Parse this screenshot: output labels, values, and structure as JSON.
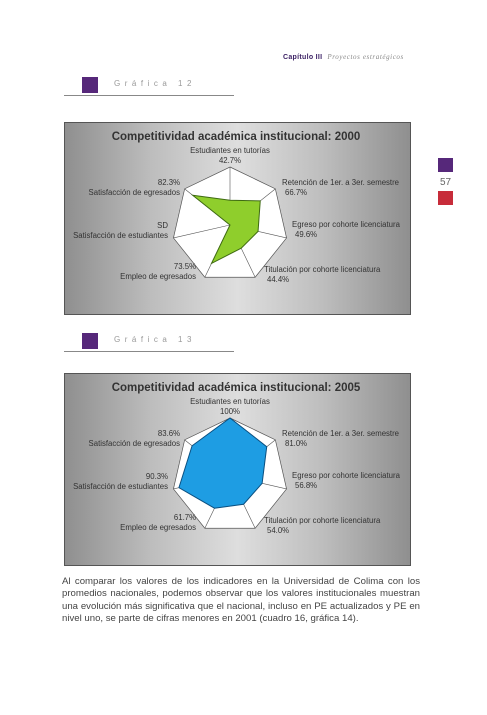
{
  "header": {
    "chapter": "Capítulo III",
    "subtitle": "Proyectos estratégicos"
  },
  "page_number": "57",
  "graphs": [
    {
      "label": "Gráfica 12"
    },
    {
      "label": "Gráfica 13"
    }
  ],
  "chart_data": [
    {
      "type": "radar",
      "title": "Competitividad académica institucional: 2000",
      "categories": [
        "Estudiantes en tutorías",
        "Retención de 1er. a 3er. semestre",
        "Egreso por cohorte licenciatura",
        "Titulación por cohorte licenciatura",
        "Empleo de egresados",
        "Satisfacción de estudiantes",
        "Satisfacción de egresados"
      ],
      "value_labels": [
        "42.7%",
        "66.7%",
        "49.6%",
        "44.4%",
        "73.5%",
        "SD",
        "82.3%"
      ],
      "values": [
        42.7,
        66.7,
        49.6,
        44.4,
        73.5,
        0,
        82.3
      ],
      "range": [
        0,
        100
      ],
      "fill": "#8fce2c",
      "stroke": "#3f6b12"
    },
    {
      "type": "radar",
      "title": "Competitividad académica institucional: 2005",
      "categories": [
        "Estudiantes en tutorías",
        "Retención de 1er. a 3er. semestre",
        "Egreso por cohorte licenciatura",
        "Titulación por cohorte licenciatura",
        "Empleo de egresados",
        "Satisfacción de estudiantes",
        "Satisfacción de egresados"
      ],
      "value_labels": [
        "100%",
        "81.0%",
        "56.8%",
        "54.0%",
        "61.7%",
        "90.3%",
        "83.6%"
      ],
      "values": [
        100,
        81.0,
        56.8,
        54.0,
        61.7,
        90.3,
        83.6
      ],
      "range": [
        0,
        100
      ],
      "fill": "#1e9de3",
      "stroke": "#0a4f80"
    }
  ],
  "paragraph": "Al comparar los valores de los indicadores en la Universidad de Colima con los promedios nacionales, podemos observar que los valores institucionales muestran una evolución más significativa que el nacional, incluso en PE actualizados y PE en nivel uno, se parte de cifras menores en 2001 (cuadro 16, gráfica 14)."
}
